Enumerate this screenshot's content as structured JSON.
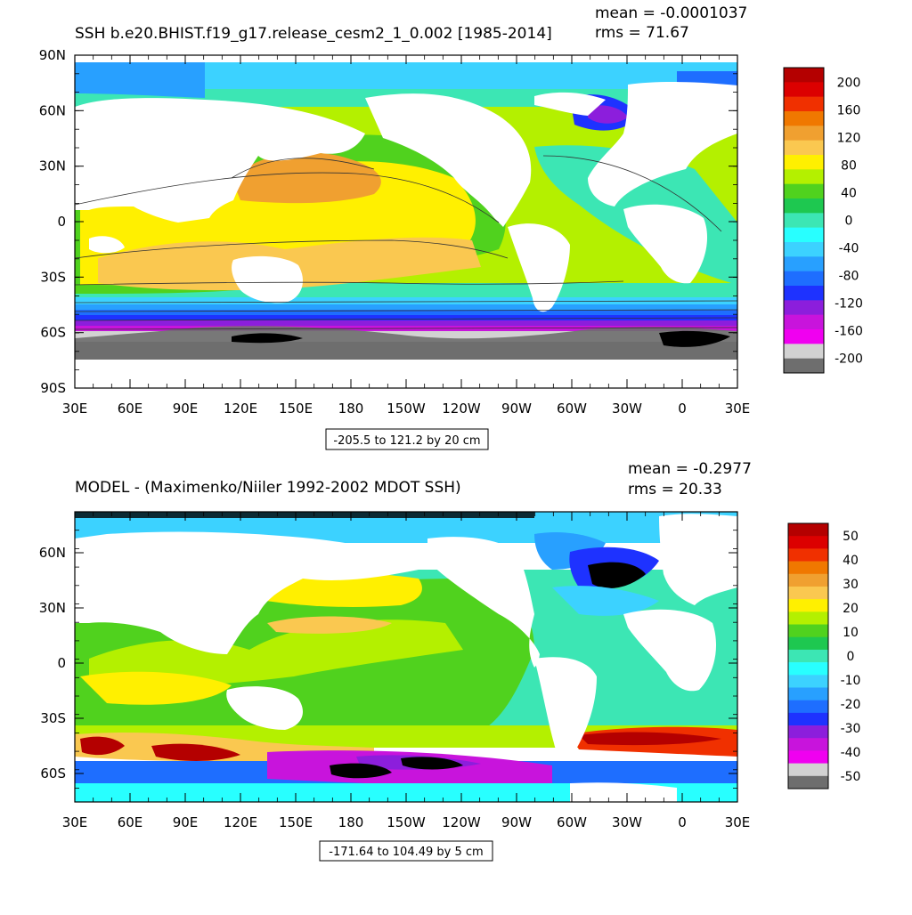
{
  "panels": [
    {
      "title": "SSH b.e20.BHIST.f19_g17.release_cesm2_1_0.002 [1985-2014]",
      "mean": "mean = -0.0001037",
      "rms": "rms = 71.67",
      "contour_info": "-205.5 to 121.2 by 20 cm",
      "y_labels": [
        "90N",
        "60N",
        "30N",
        "0",
        "30S",
        "60S",
        "90S"
      ],
      "x_labels": [
        "30E",
        "60E",
        "90E",
        "120E",
        "150E",
        "180",
        "150W",
        "120W",
        "90W",
        "60W",
        "30W",
        "0",
        "30E"
      ],
      "colorbar": {
        "labels": [
          "200",
          "160",
          "120",
          "80",
          "40",
          "0",
          "-40",
          "-80",
          "-120",
          "-160",
          "-200"
        ],
        "colors": [
          "#b40000",
          "#dc0000",
          "#f03000",
          "#f07800",
          "#f0a030",
          "#fac850",
          "#fff000",
          "#b4f000",
          "#50d21e",
          "#1ec850",
          "#3ce6b4",
          "#28ffff",
          "#3cd2ff",
          "#28a0ff",
          "#1e6eff",
          "#1e32ff",
          "#8c1edc",
          "#c814dc",
          "#f000f0",
          "#d2d2d2",
          "#6e6e6e"
        ]
      }
    },
    {
      "title": "MODEL - (Maximenko/Niiler 1992-2002 MDOT SSH)",
      "mean": "mean = -0.2977",
      "rms": "rms = 20.33",
      "contour_info": "-171.64 to 104.49 by 5 cm",
      "y_labels": [
        "60N",
        "30N",
        "0",
        "30S",
        "60S"
      ],
      "x_labels": [
        "30E",
        "60E",
        "90E",
        "120E",
        "150E",
        "180",
        "150W",
        "120W",
        "90W",
        "60W",
        "30W",
        "0",
        "30E"
      ],
      "colorbar": {
        "labels": [
          "50",
          "40",
          "30",
          "20",
          "10",
          "0",
          "-10",
          "-20",
          "-30",
          "-40",
          "-50"
        ],
        "colors": [
          "#b40000",
          "#dc0000",
          "#f03000",
          "#f07800",
          "#f0a030",
          "#fac850",
          "#fff000",
          "#b4f000",
          "#50d21e",
          "#1ec850",
          "#3ce6b4",
          "#28ffff",
          "#3cd2ff",
          "#28a0ff",
          "#1e6eff",
          "#1e32ff",
          "#8c1edc",
          "#c814dc",
          "#f000f0",
          "#d2d2d2",
          "#6e6e6e"
        ]
      }
    }
  ]
}
